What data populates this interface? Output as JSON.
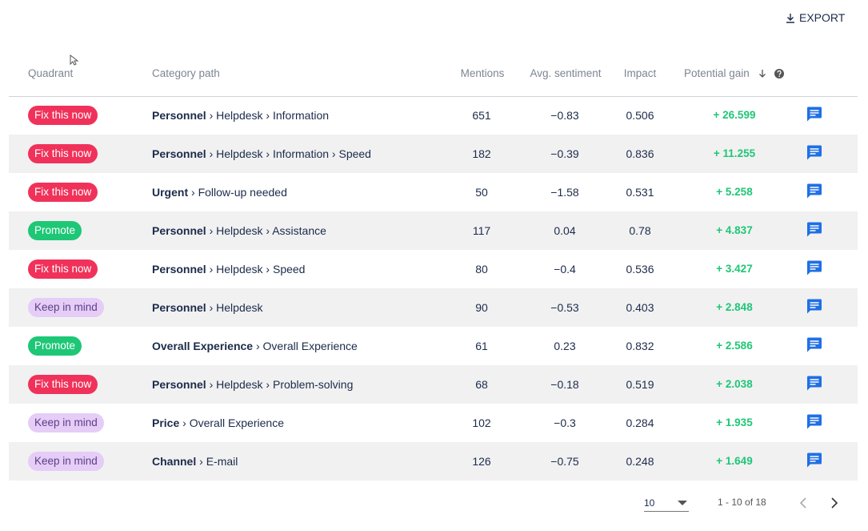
{
  "export_label": "EXPORT",
  "table": {
    "headers": [
      "Quadrant",
      "Category path",
      "Mentions",
      "Avg. sentiment",
      "Impact",
      "Potential gain"
    ],
    "rows": [
      {
        "quadrant": "Fix this now",
        "quadrant_color": "#f0325a",
        "quadrant_text_color": "#ffffff",
        "path": [
          "Personnel",
          "Helpdesk",
          "Information"
        ],
        "mentions": "651",
        "sentiment": "−0.83",
        "impact": "0.506",
        "gain": "+ 26.599"
      },
      {
        "quadrant": "Fix this now",
        "quadrant_color": "#f0325a",
        "quadrant_text_color": "#ffffff",
        "path": [
          "Personnel",
          "Helpdesk",
          "Information",
          "Speed"
        ],
        "mentions": "182",
        "sentiment": "−0.39",
        "impact": "0.836",
        "gain": "+ 11.255"
      },
      {
        "quadrant": "Fix this now",
        "quadrant_color": "#f0325a",
        "quadrant_text_color": "#ffffff",
        "path": [
          "Urgent",
          "Follow-up needed"
        ],
        "mentions": "50",
        "sentiment": "−1.58",
        "impact": "0.531",
        "gain": "+ 5.258"
      },
      {
        "quadrant": "Promote",
        "quadrant_color": "#1ec776",
        "quadrant_text_color": "#ffffff",
        "path": [
          "Personnel",
          "Helpdesk",
          "Assistance"
        ],
        "mentions": "117",
        "sentiment": "0.04",
        "impact": "0.78",
        "gain": "+ 4.837"
      },
      {
        "quadrant": "Fix this now",
        "quadrant_color": "#f0325a",
        "quadrant_text_color": "#ffffff",
        "path": [
          "Personnel",
          "Helpdesk",
          "Speed"
        ],
        "mentions": "80",
        "sentiment": "−0.4",
        "impact": "0.536",
        "gain": "+ 3.427"
      },
      {
        "quadrant": "Keep in mind",
        "quadrant_color": "#e5cdf7",
        "quadrant_text_color": "#5b3f86",
        "path": [
          "Personnel",
          "Helpdesk"
        ],
        "mentions": "90",
        "sentiment": "−0.53",
        "impact": "0.403",
        "gain": "+ 2.848"
      },
      {
        "quadrant": "Promote",
        "quadrant_color": "#1ec776",
        "quadrant_text_color": "#ffffff",
        "path": [
          "Overall Experience",
          "Overall Experience"
        ],
        "mentions": "61",
        "sentiment": "0.23",
        "impact": "0.832",
        "gain": "+ 2.586"
      },
      {
        "quadrant": "Fix this now",
        "quadrant_color": "#f0325a",
        "quadrant_text_color": "#ffffff",
        "path": [
          "Personnel",
          "Helpdesk",
          "Problem-solving"
        ],
        "mentions": "68",
        "sentiment": "−0.18",
        "impact": "0.519",
        "gain": "+ 2.038"
      },
      {
        "quadrant": "Keep in mind",
        "quadrant_color": "#e5cdf7",
        "quadrant_text_color": "#5b3f86",
        "path": [
          "Price",
          "Overall Experience"
        ],
        "mentions": "102",
        "sentiment": "−0.3",
        "impact": "0.284",
        "gain": "+ 1.935"
      },
      {
        "quadrant": "Keep in mind",
        "quadrant_color": "#e5cdf7",
        "quadrant_text_color": "#5b3f86",
        "path": [
          "Channel",
          "E-mail"
        ],
        "mentions": "126",
        "sentiment": "−0.75",
        "impact": "0.248",
        "gain": "+ 1.649"
      }
    ]
  },
  "pagination": {
    "page_size": "10",
    "range": "1 - 10 of 18"
  }
}
